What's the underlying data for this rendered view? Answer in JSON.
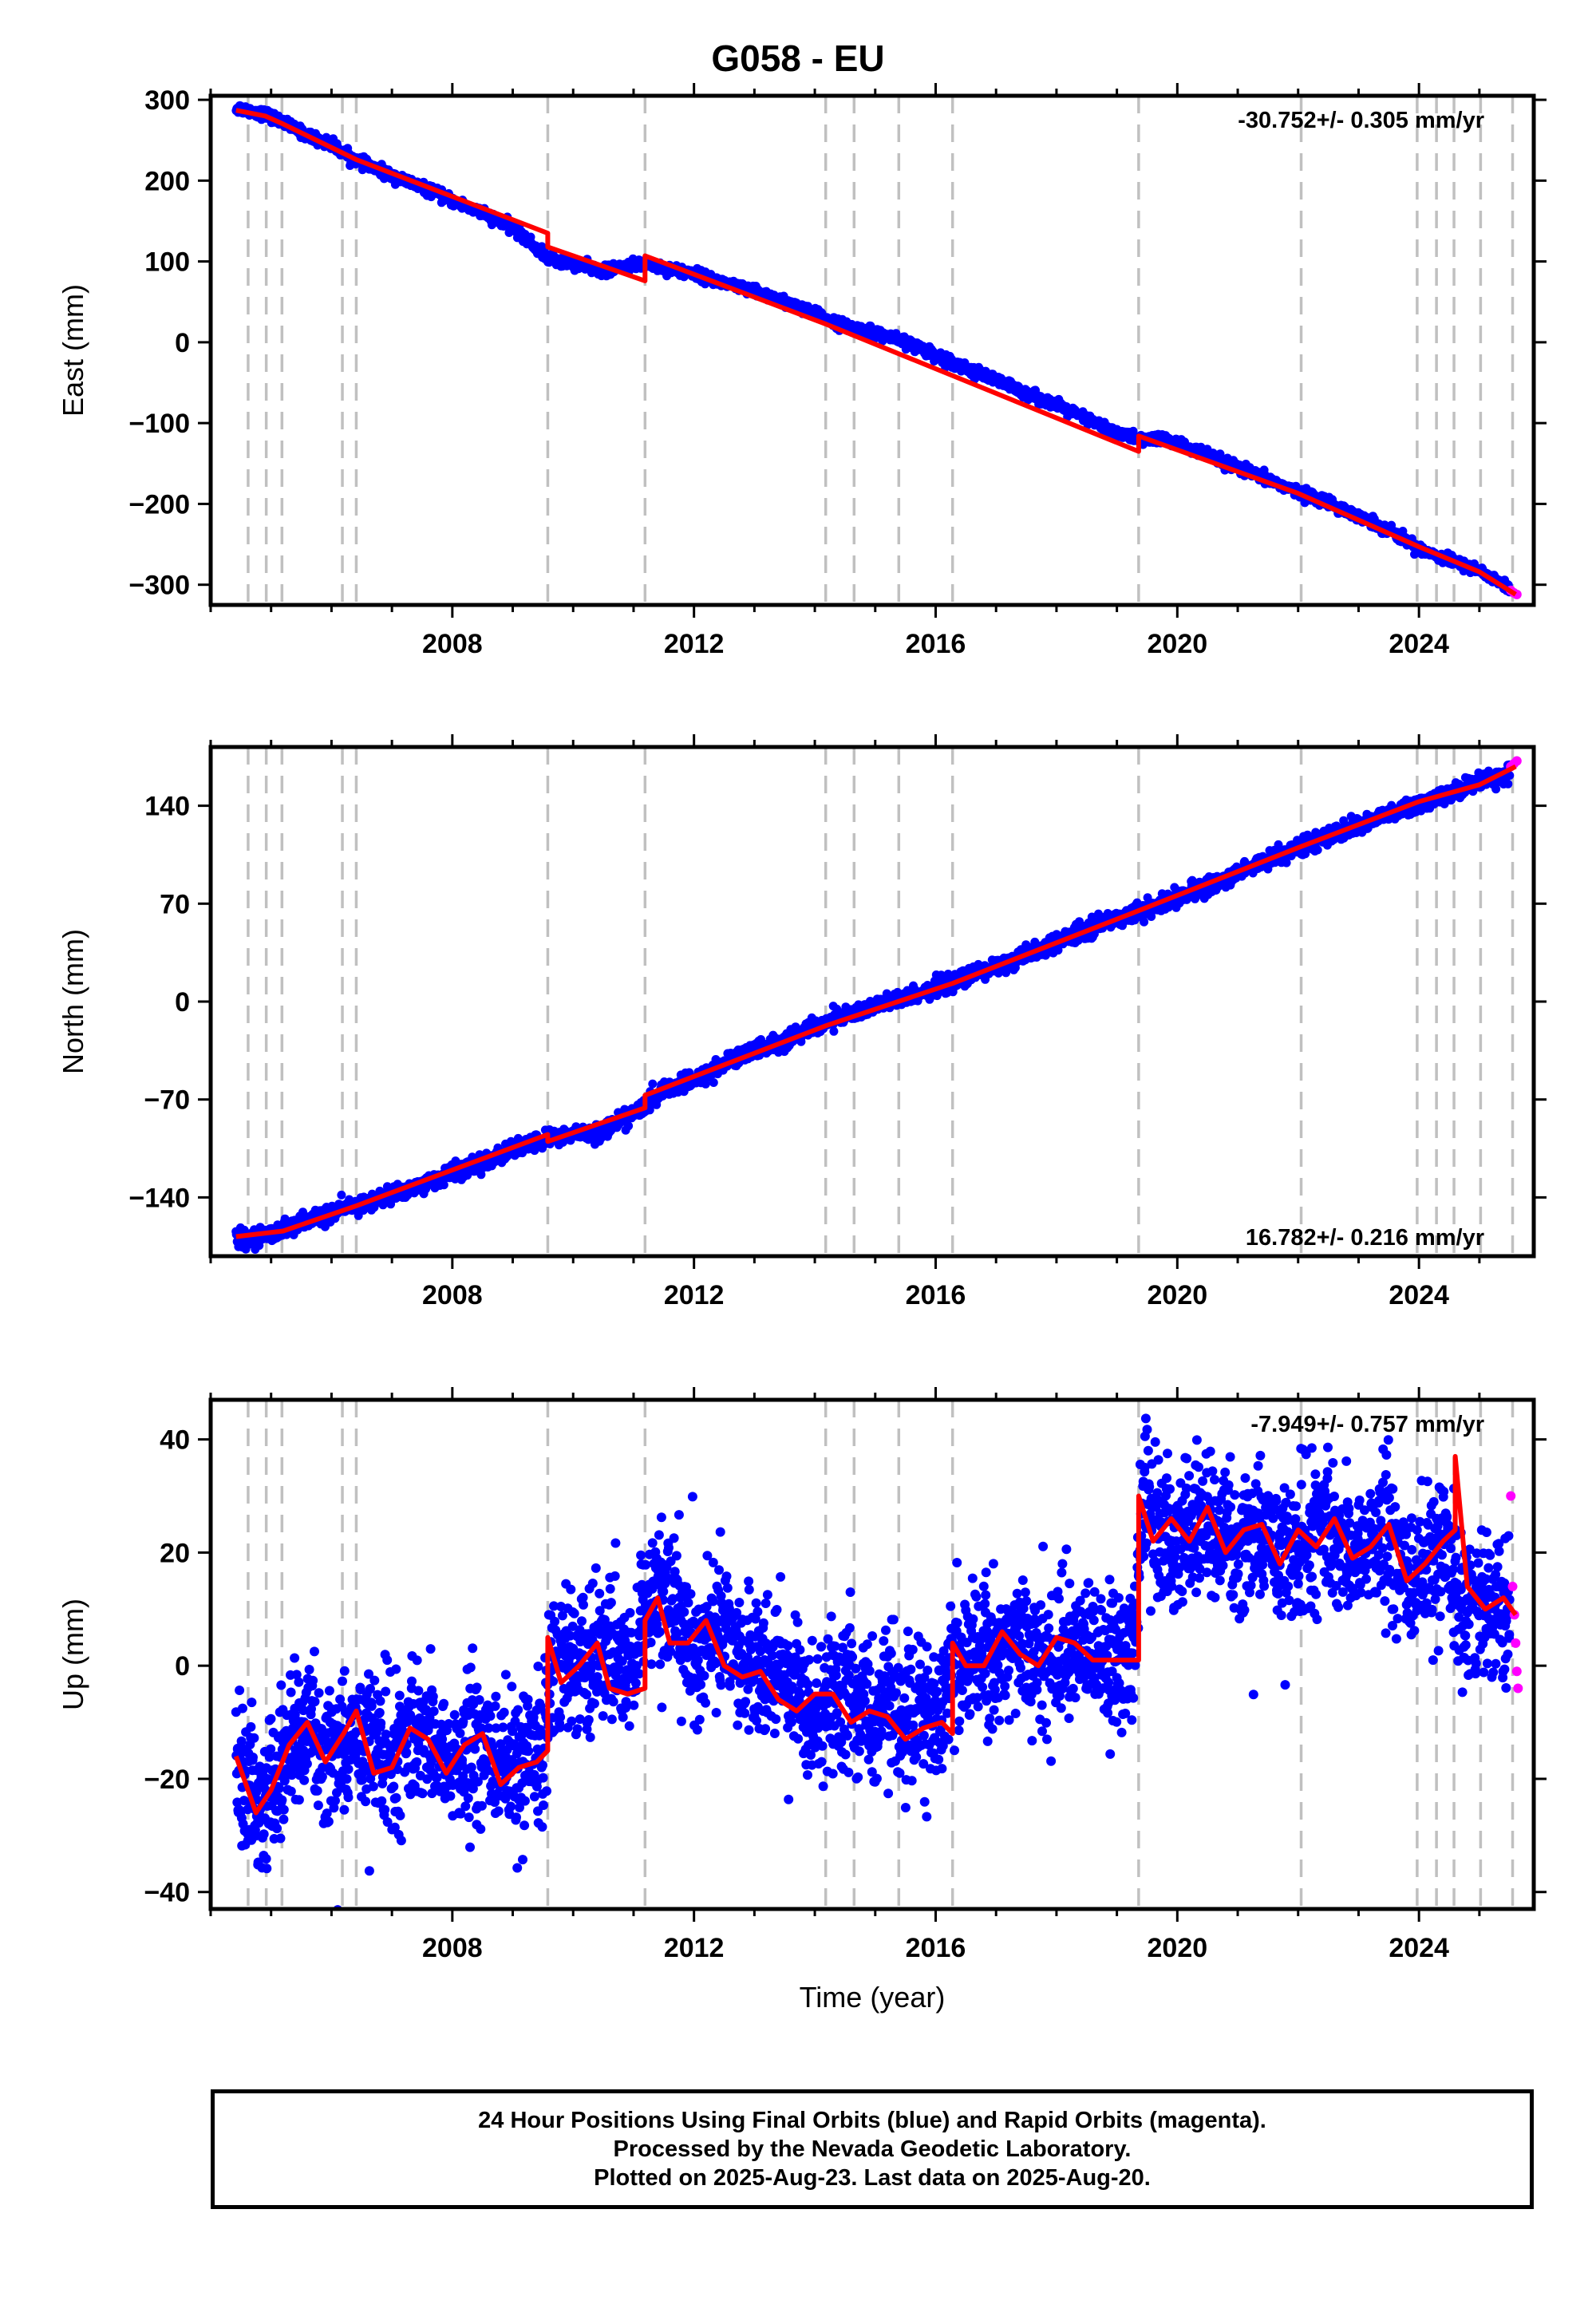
{
  "title": "G058 - EU",
  "footer": {
    "line1": "24 Hour Positions Using Final Orbits (blue) and Rapid Orbits (magenta).",
    "line2": "Processed by the Nevada Geodetic Laboratory.",
    "line3": "Plotted on 2025-Aug-23. Last data on 2025-Aug-20."
  },
  "colors": {
    "final_orbits": "#0000ff",
    "rapid_orbits": "#ff00ff",
    "model": "#ff0000",
    "steps": "#c0c0c0"
  },
  "chart_data": [
    {
      "type": "scatter",
      "ylabel": "East (mm)",
      "xlabel": "",
      "xlim": [
        2004.0,
        2025.9
      ],
      "ylim": [
        -325,
        305
      ],
      "xticks": [
        2008,
        2012,
        2016,
        2020,
        2024
      ],
      "yticks": [
        300,
        200,
        100,
        0,
        -100,
        -200,
        -300
      ],
      "rate": "-30.752+/- 0.305 mm/yr",
      "rate_position": "top-right",
      "step_epochs": [
        2004.62,
        2004.92,
        2005.18,
        2006.18,
        2006.41,
        2009.58,
        2011.19,
        2014.18,
        2014.65,
        2015.39,
        2016.28,
        2019.36,
        2022.05,
        2023.97,
        2024.29,
        2024.58,
        2025.02,
        2025.55
      ],
      "series": [
        {
          "x": [
            2004.42,
            2004.92,
            2005.2,
            2005.55,
            2006.0,
            2006.41,
            2007.0,
            2007.5,
            2008.0,
            2008.5,
            2009.0,
            2009.58,
            2010.0,
            2010.5,
            2011.19,
            2011.5,
            2012.0,
            2012.5,
            2013.0,
            2013.5,
            2014.0,
            2014.5,
            2015.0,
            2015.5,
            2016.0,
            2016.5,
            2017.0,
            2017.5,
            2018.0,
            2018.5,
            2019.0,
            2019.36,
            2019.8,
            2020.0,
            2020.5,
            2021.0,
            2021.5,
            2022.0,
            2022.5,
            2023.0,
            2023.5,
            2024.0,
            2024.5,
            2025.0,
            2025.4,
            2025.6
          ],
          "y": [
            290,
            282,
            272,
            258,
            244,
            225,
            206,
            192,
            175,
            160,
            142,
            104,
            97,
            88,
            98,
            92,
            85,
            73,
            63,
            50,
            35,
            20,
            12,
            0,
            -15,
            -32,
            -47,
            -63,
            -78,
            -95,
            -112,
            -120,
            -120,
            -125,
            -140,
            -155,
            -170,
            -185,
            -198,
            -215,
            -232,
            -255,
            -270,
            -282,
            -300,
            -310
          ]
        },
        {
          "x": [
            2025.52,
            2025.57,
            2025.62
          ],
          "y": [
            -307,
            -310,
            -312
          ]
        }
      ],
      "model_line": {
        "x": [
          2004.42,
          2004.9,
          2005.2,
          2006.41,
          2009.58,
          2009.58,
          2011.19,
          2011.19,
          2014.2,
          2019.36,
          2019.36,
          2022.0,
          2024.0,
          2025.0,
          2025.6
        ],
        "y": [
          287,
          280,
          270,
          226,
          135,
          118,
          76,
          107,
          22,
          -135,
          -116,
          -187,
          -253,
          -284,
          -312
        ]
      }
    },
    {
      "type": "scatter",
      "ylabel": "North (mm)",
      "xlabel": "",
      "xlim": [
        2004.0,
        2025.9
      ],
      "ylim": [
        -182,
        182
      ],
      "xticks": [
        2008,
        2012,
        2016,
        2020,
        2024
      ],
      "yticks": [
        140,
        70,
        0,
        -70,
        -140
      ],
      "rate": "16.782+/- 0.216 mm/yr",
      "rate_position": "bottom-right",
      "step_epochs": [
        2004.62,
        2004.92,
        2005.18,
        2006.18,
        2006.41,
        2009.58,
        2011.19,
        2014.18,
        2014.65,
        2015.39,
        2016.28,
        2019.36,
        2022.05,
        2023.97,
        2024.29,
        2024.58,
        2025.02,
        2025.55
      ],
      "series": [
        {
          "x": [
            2004.42,
            2004.92,
            2005.2,
            2005.55,
            2006.0,
            2006.41,
            2007.0,
            2007.5,
            2008.0,
            2008.5,
            2009.0,
            2009.58,
            2010.0,
            2010.5,
            2011.19,
            2011.5,
            2012.0,
            2012.5,
            2013.0,
            2013.5,
            2014.0,
            2014.5,
            2015.0,
            2015.5,
            2016.0,
            2016.5,
            2017.0,
            2017.5,
            2018.0,
            2018.5,
            2019.0,
            2019.36,
            2019.8,
            2020.0,
            2020.5,
            2021.0,
            2021.5,
            2022.0,
            2022.5,
            2023.0,
            2023.5,
            2024.0,
            2024.5,
            2025.0,
            2025.4,
            2025.6
          ],
          "y": [
            -170,
            -167,
            -163,
            -158,
            -151,
            -146,
            -138,
            -131,
            -122,
            -116,
            -106,
            -98,
            -95,
            -92,
            -75,
            -63,
            -57,
            -44,
            -34,
            -28,
            -18,
            -10,
            -3,
            2,
            10,
            17,
            25,
            33,
            42,
            52,
            60,
            64,
            70,
            75,
            82,
            92,
            102,
            110,
            118,
            126,
            134,
            140,
            148,
            158,
            162,
            166
          ]
        },
        {
          "x": [
            2025.52,
            2025.57,
            2025.62
          ],
          "y": [
            168,
            170,
            172
          ]
        }
      ],
      "model_line": {
        "x": [
          2004.42,
          2005.2,
          2006.41,
          2009.58,
          2009.58,
          2011.19,
          2011.19,
          2014.2,
          2016.28,
          2019.36,
          2022.0,
          2024.0,
          2025.0,
          2025.6
        ],
        "y": [
          -168,
          -164,
          -146,
          -95,
          -100,
          -76,
          -67,
          -17,
          13,
          65,
          110,
          143,
          155,
          168
        ]
      }
    },
    {
      "type": "scatter",
      "ylabel": "Up (mm)",
      "xlabel": "Time (year)",
      "xlim": [
        2004.0,
        2025.9
      ],
      "ylim": [
        -43,
        47
      ],
      "xticks": [
        2008,
        2012,
        2016,
        2020,
        2024
      ],
      "yticks": [
        40,
        20,
        0,
        -20,
        -40
      ],
      "rate": "-7.949+/- 0.757 mm/yr",
      "rate_position": "top-right",
      "step_epochs": [
        2004.62,
        2004.92,
        2005.18,
        2006.18,
        2006.41,
        2009.58,
        2011.19,
        2014.18,
        2014.65,
        2015.39,
        2016.28,
        2019.36,
        2022.05,
        2023.97,
        2024.29,
        2024.58,
        2025.02,
        2025.55
      ],
      "series": [
        {
          "x": [
            2004.42,
            2004.9,
            2005.4,
            2006.0,
            2006.5,
            2007.0,
            2007.5,
            2008.0,
            2008.5,
            2009.0,
            2009.5,
            2009.6,
            2010.0,
            2010.5,
            2011.0,
            2011.2,
            2011.5,
            2012.0,
            2012.5,
            2013.0,
            2013.5,
            2014.0,
            2014.5,
            2015.0,
            2015.5,
            2016.0,
            2016.3,
            2016.8,
            2017.3,
            2017.8,
            2018.3,
            2018.8,
            2019.3,
            2019.4,
            2019.9,
            2020.4,
            2020.9,
            2021.4,
            2021.9,
            2022.4,
            2022.9,
            2023.4,
            2023.9,
            2024.4,
            2024.7,
            2025.0,
            2025.4
          ],
          "y": [
            -18,
            -24,
            -11,
            -15,
            -11,
            -17,
            -11,
            -18,
            -14,
            -19,
            -15,
            2,
            0,
            4,
            -3,
            10,
            12,
            2,
            8,
            -2,
            -1,
            -8,
            -5,
            -9,
            -7,
            -11,
            1,
            2,
            5,
            1,
            4,
            1,
            2,
            28,
            22,
            27,
            21,
            25,
            19,
            25,
            19,
            23,
            15,
            20,
            13,
            10,
            11
          ]
        },
        {
          "x": [
            2025.52,
            2025.55,
            2025.58,
            2025.6,
            2025.62,
            2025.64
          ],
          "y": [
            30,
            14,
            9,
            4,
            -1,
            -4
          ]
        }
      ],
      "model_line": {
        "x": [
          2004.42,
          2004.75,
          2005.0,
          2005.3,
          2005.6,
          2005.9,
          2006.2,
          2006.41,
          2006.7,
          2007.0,
          2007.3,
          2007.6,
          2007.9,
          2008.2,
          2008.5,
          2008.8,
          2009.1,
          2009.4,
          2009.58,
          2009.58,
          2009.8,
          2010.1,
          2010.4,
          2010.6,
          2010.9,
          2011.19,
          2011.19,
          2011.4,
          2011.6,
          2011.9,
          2012.2,
          2012.5,
          2012.8,
          2013.1,
          2013.4,
          2013.7,
          2014.0,
          2014.3,
          2014.6,
          2014.9,
          2015.2,
          2015.5,
          2015.8,
          2016.1,
          2016.28,
          2016.28,
          2016.5,
          2016.8,
          2017.1,
          2017.4,
          2017.7,
          2018.0,
          2018.3,
          2018.6,
          2018.9,
          2019.2,
          2019.36,
          2019.36,
          2019.6,
          2019.9,
          2020.2,
          2020.5,
          2020.8,
          2021.1,
          2021.4,
          2021.7,
          2022.0,
          2022.3,
          2022.6,
          2022.9,
          2023.2,
          2023.5,
          2023.8,
          2024.1,
          2024.4,
          2024.6,
          2024.6,
          2024.8,
          2025.1,
          2025.4,
          2025.6
        ],
        "y": [
          -16,
          -26,
          -22,
          -14,
          -10,
          -17,
          -12,
          -8,
          -19,
          -18,
          -11,
          -13,
          -19,
          -14,
          -12,
          -21,
          -18,
          -17,
          -15,
          5,
          -3,
          0,
          4,
          -4,
          -5,
          -4,
          8,
          12,
          4,
          4,
          8,
          0,
          -2,
          -1,
          -6,
          -8,
          -5,
          -5,
          -10,
          -8,
          -9,
          -13,
          -11,
          -10,
          -12,
          4,
          0,
          0,
          6,
          2,
          0,
          5,
          4,
          1,
          1,
          1,
          1,
          30,
          22,
          26,
          22,
          28,
          20,
          24,
          25,
          18,
          24,
          21,
          26,
          19,
          21,
          25,
          15,
          18,
          22,
          24,
          37,
          14,
          10,
          12,
          9
        ]
      }
    }
  ]
}
